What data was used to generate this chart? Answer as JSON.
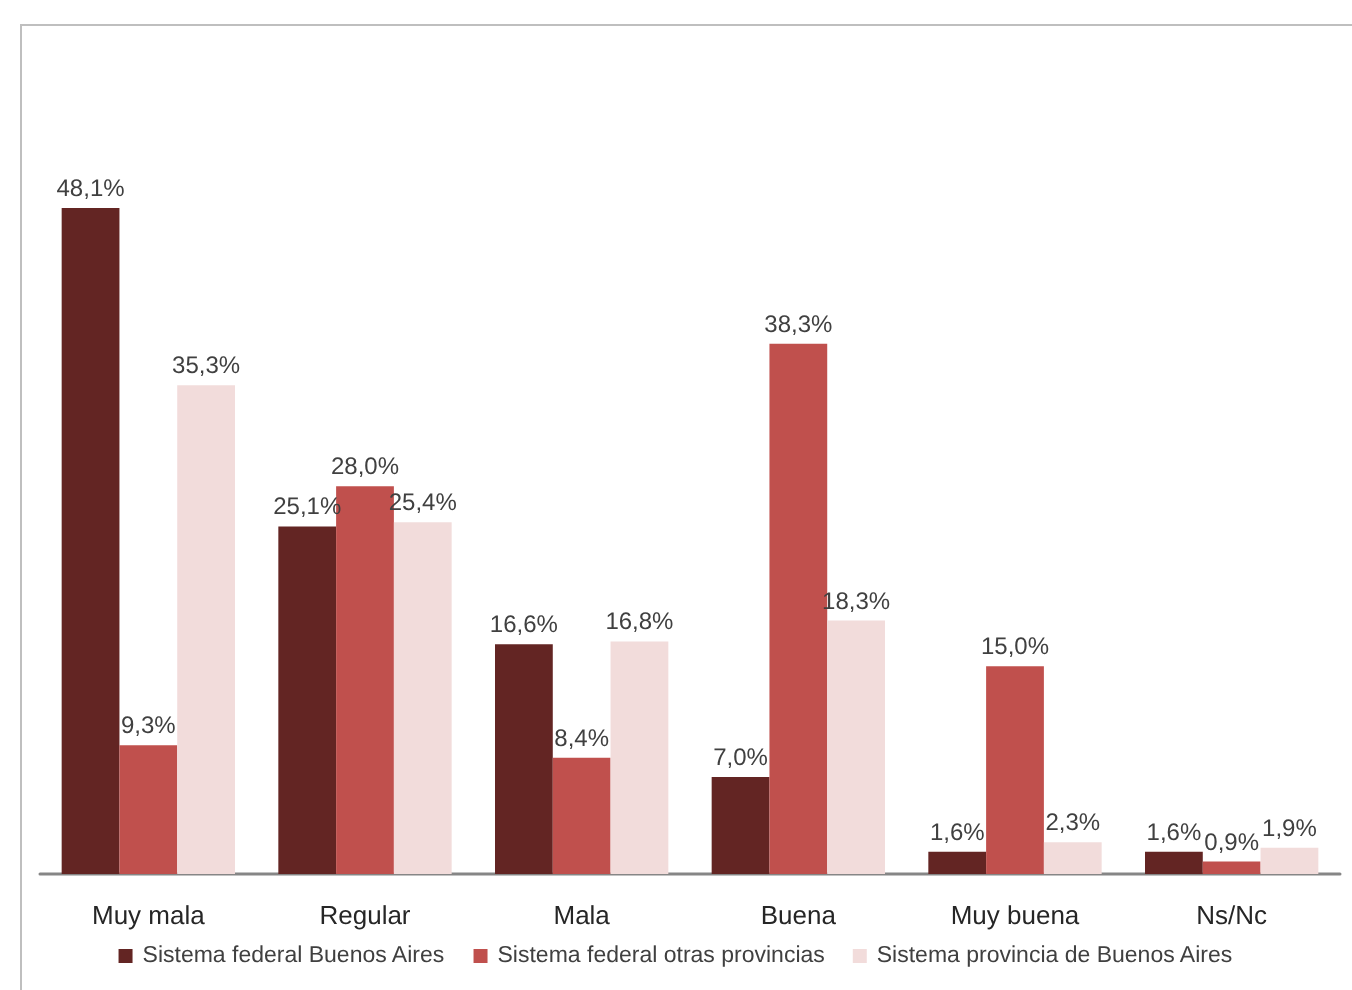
{
  "chart_data": {
    "type": "bar",
    "categories": [
      "Muy mala",
      "Regular",
      "Mala",
      "Buena",
      "Muy buena",
      "Ns/Nc"
    ],
    "series": [
      {
        "name": "Sistema federal Buenos Aires",
        "color": "#632523",
        "values": [
          48.1,
          25.1,
          16.6,
          7.0,
          1.6,
          1.6
        ],
        "value_labels": [
          "48,1%",
          "25,1%",
          "16,6%",
          "7,0%",
          "1,6%",
          "1,6%"
        ]
      },
      {
        "name": "Sistema federal otras provincias",
        "color": "#c0504d",
        "values": [
          9.3,
          28.0,
          8.4,
          38.3,
          15.0,
          0.9
        ],
        "value_labels": [
          "9,3%",
          "28,0%",
          "8,4%",
          "38,3%",
          "15,0%",
          "0,9%"
        ]
      },
      {
        "name": "Sistema provincia de Buenos Aires",
        "color": "#f2dcdb",
        "values": [
          35.3,
          25.4,
          16.8,
          18.3,
          2.3,
          1.9
        ],
        "value_labels": [
          "35,3%",
          "25,4%",
          "16,8%",
          "18,3%",
          "2,3%",
          "1,9%"
        ]
      }
    ],
    "legend": "bottom",
    "grid": false,
    "tick_labels": "x"
  }
}
